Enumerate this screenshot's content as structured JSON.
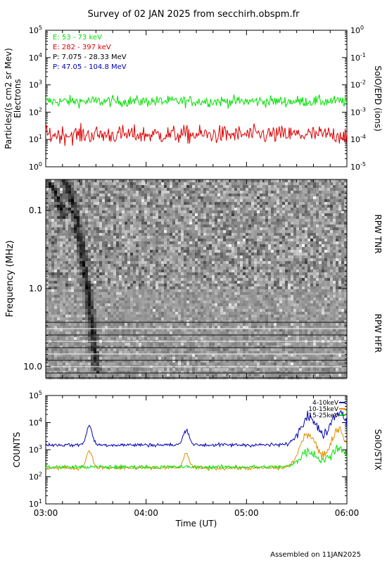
{
  "title": "Survey of 02 JAN 2025 from secchirh.obspm.fr",
  "footer": "Assembled on 11JAN2025",
  "colors": {
    "green": "#00e000",
    "red": "#dd0000",
    "blue": "#0000b0",
    "orange": "#e09000",
    "black": "#000000"
  },
  "chart_data": [
    {
      "type": "line",
      "name": "epd",
      "ylabel": "Particles/(s cm2 sr Mev)",
      "ylabel2": "Electrons",
      "right_label": "SolO/EPD (ions)",
      "yscale": "log",
      "ylim": [
        1,
        100000
      ],
      "yticks": [
        "10^0",
        "10^1",
        "10^2",
        "10^3",
        "10^4",
        "10^5"
      ],
      "y2lim": [
        1e-05,
        1
      ],
      "y2ticks": [
        "10^-5",
        "10^-4",
        "10^-3",
        "10^-2",
        "10^-1",
        "10^0"
      ],
      "xlim": [
        "03:00",
        "06:00"
      ],
      "legend": [
        {
          "label": "E: 53 - 73 keV",
          "color": "#00e000"
        },
        {
          "label": "E: 282 - 397 keV",
          "color": "#dd0000"
        },
        {
          "label": "P: 7.075 - 28.33 MeV",
          "color": "#000000"
        },
        {
          "label": "P: 47.05 - 104.8 MeV",
          "color": "#0000b0"
        }
      ],
      "series": [
        {
          "name": "E: 53 - 73 keV",
          "color": "#00e000",
          "mean": 250,
          "noise_decades": 0.17,
          "time_range": [
            "03:00",
            "06:00"
          ]
        },
        {
          "name": "E: 282 - 397 keV",
          "color": "#dd0000",
          "mean": 15,
          "noise_decades": 0.28,
          "time_range": [
            "03:00",
            "06:00"
          ]
        }
      ]
    },
    {
      "type": "heatmap",
      "name": "rpw",
      "ylabel": "Frequency (MHz)",
      "yscale": "log",
      "yreversed": true,
      "ylim": [
        0.04,
        14
      ],
      "yticks": [
        "0.1",
        "1.0",
        "10.0"
      ],
      "xlim": [
        "03:00",
        "06:00"
      ],
      "bands": [
        {
          "label": "RPW TNR",
          "range_mhz": [
            0.04,
            1.0
          ]
        },
        {
          "label": "RPW HFR",
          "range_mhz": [
            1.0,
            14
          ]
        }
      ],
      "bursts": [
        {
          "start": "03:10",
          "end": "03:30",
          "f_high_mhz": 0.04,
          "f_low_mhz": 12
        },
        {
          "start": "03:00",
          "end": "03:10",
          "f_high_mhz": 0.04,
          "f_low_mhz": 0.12
        }
      ]
    },
    {
      "type": "line",
      "name": "stix",
      "ylabel": "COUNTS",
      "right_label": "SolO/STIX",
      "yscale": "log",
      "ylim": [
        10,
        100000
      ],
      "yticks": [
        "10^1",
        "10^2",
        "10^3",
        "10^4",
        "10^5"
      ],
      "xlim": [
        "03:00",
        "06:00"
      ],
      "xticks": [
        "03:00",
        "04:00",
        "05:00",
        "06:00"
      ],
      "xlabel": "Time (UT)",
      "legend": [
        {
          "label": "4-10keV",
          "color": "#0000b0"
        },
        {
          "label": "10-15keV",
          "color": "#e09000"
        },
        {
          "label": "15-25keV",
          "color": "#00e000"
        }
      ],
      "series": [
        {
          "name": "4-10keV",
          "color": "#0000b0",
          "baseline": 1500,
          "peaks": [
            {
              "time": "03:26",
              "value": 7500
            },
            {
              "time": "04:24",
              "value": 5500
            },
            {
              "time": "05:37",
              "value": 18000
            },
            {
              "time": "05:55",
              "value": 25000
            }
          ]
        },
        {
          "name": "10-15keV",
          "color": "#e09000",
          "baseline": 210,
          "peaks": [
            {
              "time": "03:26",
              "value": 950
            },
            {
              "time": "04:24",
              "value": 700
            },
            {
              "time": "05:37",
              "value": 4000
            },
            {
              "time": "05:55",
              "value": 5500
            }
          ]
        },
        {
          "name": "15-25keV",
          "color": "#00e000",
          "baseline": 230,
          "peaks": [
            {
              "time": "05:37",
              "value": 900
            },
            {
              "time": "05:55",
              "value": 1100
            }
          ]
        }
      ]
    }
  ]
}
